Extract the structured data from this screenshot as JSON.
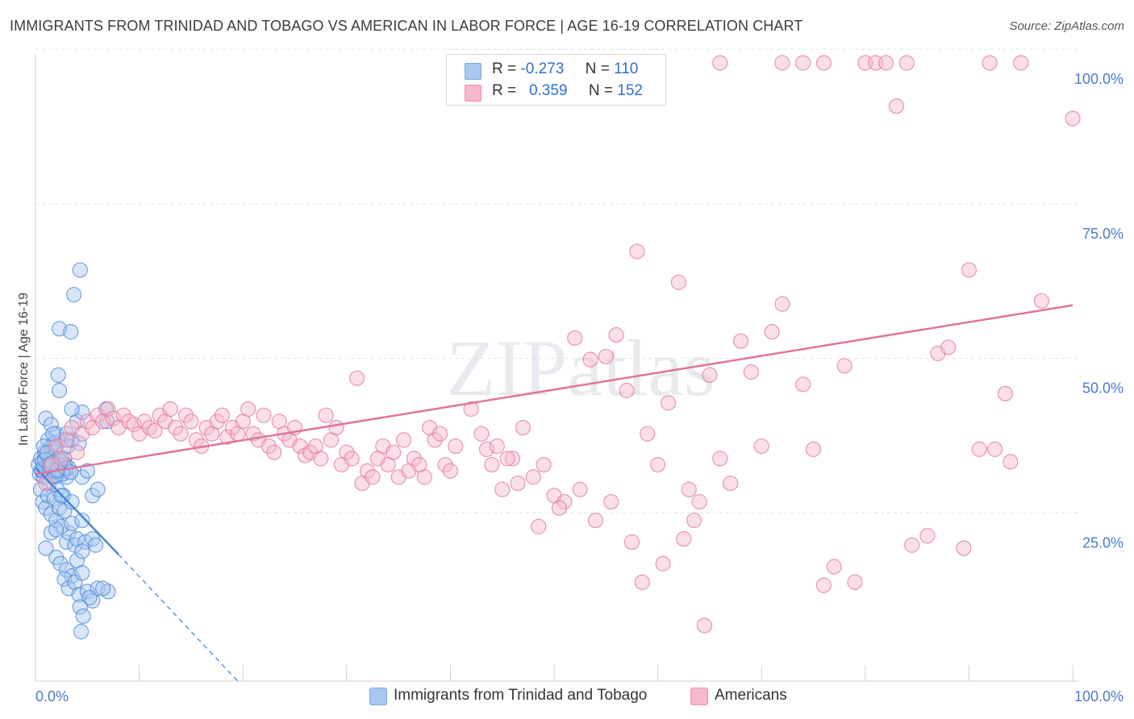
{
  "title": "IMMIGRANTS FROM TRINIDAD AND TOBAGO VS AMERICAN IN LABOR FORCE | AGE 16-19 CORRELATION CHART",
  "source": "Source: ZipAtlas.com",
  "watermark": "ZIPatlas",
  "stats_legend": {
    "rows": [
      {
        "r_label": "R =",
        "r_value": "-0.273",
        "n_label": "N =",
        "n_value": "110",
        "color": "#a8c8f0"
      },
      {
        "r_label": "R =",
        "r_value": "0.359",
        "n_label": "N =",
        "n_value": "152",
        "color": "#f6b8cb"
      }
    ]
  },
  "chart_data": {
    "type": "scatter",
    "title": "IMMIGRANTS FROM TRINIDAD AND TOBAGO VS AMERICAN IN LABOR FORCE | AGE 16-19 CORRELATION CHART",
    "xlabel": "",
    "ylabel": "In Labor Force | Age 16-19",
    "xlim": [
      0,
      100
    ],
    "ylim": [
      0,
      100
    ],
    "x_ticks": [
      "0.0%",
      "100.0%"
    ],
    "y_ticks": [
      {
        "value": 25,
        "label": "25.0%"
      },
      {
        "value": 50,
        "label": "50.0%"
      },
      {
        "value": 75,
        "label": "75.0%"
      },
      {
        "value": 100,
        "label": "100.0%"
      }
    ],
    "grid": "horizontal dashed",
    "legend_position": "bottom",
    "series": [
      {
        "name": "Immigrants from Trinidad and Tobago",
        "color": "#4a86d4",
        "fill": "#a8c8f0",
        "r": -0.273,
        "n": 110,
        "trend": {
          "x": [
            0,
            8
          ],
          "y": [
            34.5,
            20.5
          ],
          "dashed_to": [
            19.5,
            0
          ]
        },
        "points": [
          [
            0.3,
            35
          ],
          [
            0.4,
            33.5
          ],
          [
            0.5,
            36
          ],
          [
            0.6,
            34
          ],
          [
            0.7,
            35.5
          ],
          [
            0.8,
            33
          ],
          [
            0.9,
            37
          ],
          [
            1.0,
            34.5
          ],
          [
            1.1,
            36.5
          ],
          [
            1.2,
            35
          ],
          [
            1.3,
            32
          ],
          [
            1.4,
            34
          ],
          [
            1.5,
            38
          ],
          [
            1.6,
            36
          ],
          [
            1.7,
            33
          ],
          [
            1.8,
            35
          ],
          [
            1.9,
            37.5
          ],
          [
            2.0,
            34
          ],
          [
            2.1,
            31
          ],
          [
            2.2,
            36
          ],
          [
            2.3,
            35
          ],
          [
            2.4,
            33.5
          ],
          [
            2.5,
            39
          ],
          [
            2.6,
            34
          ],
          [
            2.7,
            30
          ],
          [
            2.8,
            36
          ],
          [
            2.9,
            35
          ],
          [
            3.0,
            33
          ],
          [
            3.1,
            38
          ],
          [
            3.2,
            34.5
          ],
          [
            0.5,
            31
          ],
          [
            0.7,
            29
          ],
          [
            1.0,
            28
          ],
          [
            1.2,
            30
          ],
          [
            1.5,
            27
          ],
          [
            1.8,
            29.5
          ],
          [
            2.0,
            26
          ],
          [
            2.3,
            28
          ],
          [
            2.5,
            30
          ],
          [
            2.8,
            27.5
          ],
          [
            1.0,
            42.5
          ],
          [
            1.5,
            41.5
          ],
          [
            2.0,
            40
          ],
          [
            1.2,
            39
          ],
          [
            1.8,
            38.5
          ],
          [
            0.8,
            38
          ],
          [
            3.0,
            40
          ],
          [
            3.5,
            39
          ],
          [
            4.0,
            42
          ],
          [
            4.5,
            43.5
          ],
          [
            2.2,
            49.5
          ],
          [
            2.3,
            47
          ],
          [
            2.3,
            57
          ],
          [
            3.4,
            56.5
          ],
          [
            3.7,
            62.5
          ],
          [
            4.3,
            66.5
          ],
          [
            3.5,
            44
          ],
          [
            4.2,
            38.5
          ],
          [
            6.8,
            44
          ],
          [
            6.9,
            42
          ],
          [
            3.0,
            22.5
          ],
          [
            3.2,
            24
          ],
          [
            3.8,
            22
          ],
          [
            4.0,
            23
          ],
          [
            4.8,
            22.5
          ],
          [
            5.5,
            23
          ],
          [
            5.8,
            22
          ],
          [
            2.5,
            25
          ],
          [
            3.5,
            25.5
          ],
          [
            4.5,
            26
          ],
          [
            2.0,
            20
          ],
          [
            2.4,
            19
          ],
          [
            3.0,
            18
          ],
          [
            3.5,
            17
          ],
          [
            4.0,
            19.5
          ],
          [
            4.5,
            21
          ],
          [
            2.8,
            16.5
          ],
          [
            3.2,
            15
          ],
          [
            3.8,
            16
          ],
          [
            4.2,
            14
          ],
          [
            4.5,
            17.5
          ],
          [
            5.0,
            14.5
          ],
          [
            5.5,
            13
          ],
          [
            6.0,
            15
          ],
          [
            7.0,
            14.5
          ],
          [
            6.5,
            15
          ],
          [
            5.2,
            13.5
          ],
          [
            4.3,
            12
          ],
          [
            4.6,
            10.5
          ],
          [
            4.4,
            8
          ],
          [
            1.0,
            21.5
          ],
          [
            1.5,
            24
          ],
          [
            2.0,
            24.5
          ],
          [
            3.5,
            29
          ],
          [
            4.5,
            33
          ],
          [
            5.0,
            34
          ],
          [
            5.5,
            30
          ],
          [
            6.0,
            31
          ],
          [
            1.7,
            40
          ],
          [
            2.6,
            33.5
          ],
          [
            0.6,
            34.2
          ],
          [
            0.9,
            35.8
          ],
          [
            1.4,
            34.8
          ],
          [
            1.9,
            33.2
          ],
          [
            2.4,
            35.6
          ],
          [
            2.9,
            34.4
          ],
          [
            3.4,
            33.8
          ],
          [
            1.1,
            36.9
          ],
          [
            1.6,
            35.3
          ],
          [
            2.1,
            34.1
          ]
        ]
      },
      {
        "name": "Americans",
        "color": "#e0759a",
        "fill": "#f6b8cb",
        "r": 0.359,
        "n": 152,
        "trend": {
          "x": [
            0,
            100
          ],
          "y": [
            33.5,
            60.8
          ]
        },
        "points": [
          [
            1.0,
            32
          ],
          [
            1.5,
            35
          ],
          [
            2.0,
            38
          ],
          [
            2.5,
            36
          ],
          [
            3.0,
            39
          ],
          [
            3.5,
            41
          ],
          [
            4.0,
            37
          ],
          [
            4.5,
            40
          ],
          [
            5.0,
            42
          ],
          [
            5.5,
            41
          ],
          [
            6.0,
            43
          ],
          [
            6.5,
            42
          ],
          [
            7.0,
            44
          ],
          [
            7.5,
            42.5
          ],
          [
            8.0,
            41
          ],
          [
            8.5,
            43
          ],
          [
            9.0,
            42
          ],
          [
            9.5,
            41.5
          ],
          [
            10.0,
            40
          ],
          [
            10.5,
            42
          ],
          [
            11.0,
            41
          ],
          [
            11.5,
            40.5
          ],
          [
            12.0,
            43
          ],
          [
            12.5,
            42
          ],
          [
            13.0,
            44
          ],
          [
            13.5,
            41
          ],
          [
            14.0,
            40
          ],
          [
            14.5,
            43
          ],
          [
            15.0,
            42
          ],
          [
            15.5,
            39
          ],
          [
            16.0,
            38
          ],
          [
            16.5,
            41
          ],
          [
            17.0,
            40
          ],
          [
            17.5,
            42
          ],
          [
            18.0,
            43
          ],
          [
            18.5,
            39.5
          ],
          [
            19.0,
            41
          ],
          [
            19.5,
            40
          ],
          [
            20.0,
            42
          ],
          [
            20.5,
            44
          ],
          [
            21.0,
            40
          ],
          [
            21.5,
            39
          ],
          [
            22.0,
            43
          ],
          [
            22.5,
            38
          ],
          [
            23.0,
            37
          ],
          [
            23.5,
            42
          ],
          [
            24.0,
            40
          ],
          [
            24.5,
            39
          ],
          [
            25.0,
            41
          ],
          [
            25.5,
            38
          ],
          [
            26.0,
            36.5
          ],
          [
            26.5,
            37
          ],
          [
            27.0,
            38
          ],
          [
            27.5,
            36
          ],
          [
            28.0,
            43
          ],
          [
            28.5,
            39
          ],
          [
            29.0,
            41
          ],
          [
            29.5,
            35
          ],
          [
            30.0,
            37
          ],
          [
            30.5,
            36
          ],
          [
            31.0,
            49
          ],
          [
            31.5,
            32
          ],
          [
            32.0,
            34
          ],
          [
            32.5,
            33
          ],
          [
            33.0,
            36
          ],
          [
            33.5,
            38
          ],
          [
            34.0,
            35
          ],
          [
            34.5,
            37
          ],
          [
            35.0,
            33
          ],
          [
            35.5,
            39
          ],
          [
            36.0,
            34
          ],
          [
            36.5,
            36
          ],
          [
            37.0,
            35
          ],
          [
            37.5,
            33
          ],
          [
            38.0,
            41
          ],
          [
            38.5,
            39
          ],
          [
            39.0,
            40
          ],
          [
            39.5,
            35
          ],
          [
            40.0,
            34
          ],
          [
            40.5,
            38
          ],
          [
            42.0,
            44
          ],
          [
            43.0,
            40
          ],
          [
            44.0,
            35
          ],
          [
            45.0,
            31
          ],
          [
            46.0,
            36
          ],
          [
            47.0,
            41
          ],
          [
            48.0,
            33
          ],
          [
            49.0,
            35
          ],
          [
            50.0,
            30
          ],
          [
            51.0,
            29
          ],
          [
            52.0,
            55.5
          ],
          [
            53.5,
            52
          ],
          [
            55.0,
            52.5
          ],
          [
            56.0,
            56
          ],
          [
            57.0,
            47
          ],
          [
            58.0,
            69.5
          ],
          [
            59.0,
            40
          ],
          [
            60.0,
            35
          ],
          [
            61.0,
            45
          ],
          [
            62.0,
            64.5
          ],
          [
            63.0,
            31
          ],
          [
            64.0,
            29
          ],
          [
            65.0,
            49.5
          ],
          [
            66.0,
            36
          ],
          [
            67.0,
            32
          ],
          [
            68.0,
            55
          ],
          [
            69.0,
            50
          ],
          [
            70.0,
            38
          ],
          [
            71.0,
            56.5
          ],
          [
            72.0,
            61
          ],
          [
            74.0,
            48
          ],
          [
            75.0,
            37.5
          ],
          [
            76.0,
            15.5
          ],
          [
            77.0,
            18.5
          ],
          [
            78.0,
            51
          ],
          [
            79.0,
            16
          ],
          [
            80.0,
            100
          ],
          [
            81.0,
            100
          ],
          [
            82.0,
            100
          ],
          [
            83.0,
            93
          ],
          [
            66.0,
            100
          ],
          [
            72.0,
            100
          ],
          [
            74.0,
            100
          ],
          [
            76.0,
            100
          ],
          [
            84.0,
            100
          ],
          [
            90.0,
            66.5
          ],
          [
            92.0,
            100
          ],
          [
            95.0,
            100
          ],
          [
            97.0,
            61.5
          ],
          [
            100.0,
            91
          ],
          [
            84.5,
            22
          ],
          [
            86.0,
            23.5
          ],
          [
            87.0,
            53
          ],
          [
            88.0,
            54
          ],
          [
            89.5,
            21.5
          ],
          [
            91.0,
            37.5
          ],
          [
            92.5,
            37.5
          ],
          [
            93.5,
            46.5
          ],
          [
            94.0,
            35.5
          ],
          [
            57.5,
            22.5
          ],
          [
            54.0,
            26
          ],
          [
            55.5,
            29
          ],
          [
            58.5,
            16
          ],
          [
            60.5,
            19
          ],
          [
            62.5,
            23
          ],
          [
            63.5,
            26
          ],
          [
            64.5,
            9
          ],
          [
            48.5,
            25
          ],
          [
            50.5,
            28
          ],
          [
            52.5,
            31
          ],
          [
            43.5,
            37.5
          ],
          [
            44.5,
            38
          ],
          [
            45.5,
            36
          ],
          [
            46.5,
            32
          ]
        ]
      }
    ]
  },
  "legend_bottom": [
    {
      "label": "Immigrants from Trinidad and Tobago",
      "color": "#a8c8f0"
    },
    {
      "label": "Americans",
      "color": "#f6b8cb"
    }
  ]
}
